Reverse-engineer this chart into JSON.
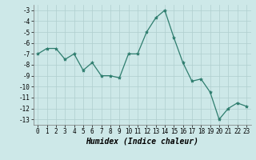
{
  "x": [
    0,
    1,
    2,
    3,
    4,
    5,
    6,
    7,
    8,
    9,
    10,
    11,
    12,
    13,
    14,
    15,
    16,
    17,
    18,
    19,
    20,
    21,
    22,
    23
  ],
  "y": [
    -7,
    -6.5,
    -6.5,
    -7.5,
    -7,
    -8.5,
    -7.8,
    -9,
    -9,
    -9.2,
    -7,
    -7,
    -5,
    -3.7,
    -3,
    -5.5,
    -7.8,
    -9.5,
    -9.3,
    -10.5,
    -13,
    -12,
    -11.5,
    -11.8
  ],
  "line_color": "#2e7d6e",
  "marker": "*",
  "marker_size": 3,
  "bg_color": "#cde8e8",
  "grid_color": "#b0cece",
  "xlabel": "Humidex (Indice chaleur)",
  "ylim": [
    -13.5,
    -2.5
  ],
  "xlim": [
    -0.5,
    23.5
  ],
  "yticks": [
    -13,
    -12,
    -11,
    -10,
    -9,
    -8,
    -7,
    -6,
    -5,
    -4,
    -3
  ],
  "xticks": [
    0,
    1,
    2,
    3,
    4,
    5,
    6,
    7,
    8,
    9,
    10,
    11,
    12,
    13,
    14,
    15,
    16,
    17,
    18,
    19,
    20,
    21,
    22,
    23
  ],
  "tick_fontsize": 5.5,
  "xlabel_fontsize": 7
}
